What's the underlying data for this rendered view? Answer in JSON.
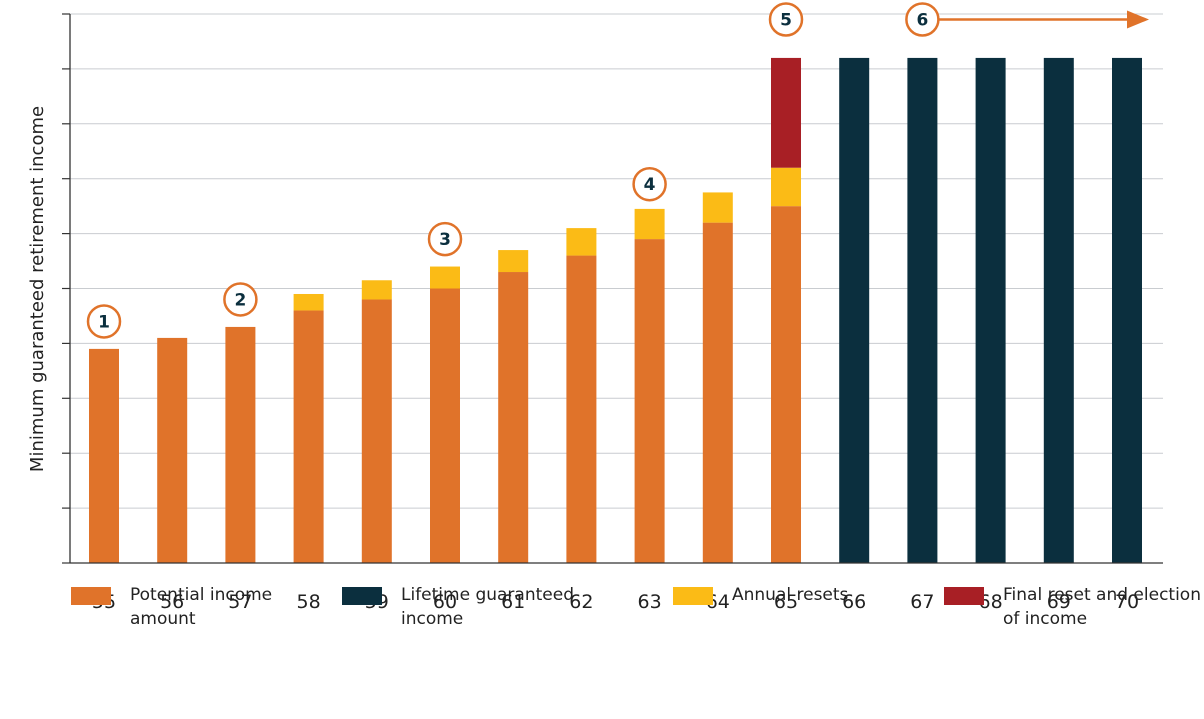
{
  "chart_data": {
    "type": "bar",
    "stacked": true,
    "ylabel": "Minimum guaranteed retirement income",
    "xlabel": "",
    "categories": [
      "55",
      "56",
      "57",
      "58",
      "59",
      "60",
      "61",
      "62",
      "63",
      "64",
      "65",
      "66",
      "67",
      "68",
      "69",
      "70"
    ],
    "ylim": [
      0,
      10
    ],
    "grid": true,
    "y_tick_labels_shown": false,
    "series": [
      {
        "name": "Potential income amount",
        "color": "#e0732a",
        "values": [
          3.9,
          4.1,
          4.3,
          4.6,
          4.8,
          5.0,
          5.3,
          5.6,
          5.9,
          6.2,
          6.5,
          0,
          0,
          0,
          0,
          0
        ]
      },
      {
        "name": "Lifetime guaranteed income",
        "color": "#0b2f3e",
        "values": [
          0,
          0,
          0,
          0,
          0,
          0,
          0,
          0,
          0,
          0,
          0,
          9.2,
          9.2,
          9.2,
          9.2,
          9.2
        ]
      },
      {
        "name": "Annual resets",
        "color": "#fbbb16",
        "values": [
          0,
          0,
          0,
          0.3,
          0.35,
          0.4,
          0.4,
          0.5,
          0.55,
          0.55,
          0.7,
          0,
          0,
          0,
          0,
          0
        ]
      },
      {
        "name": "Final reset and election of income",
        "color": "#a81f25",
        "values": [
          0,
          0,
          0,
          0,
          0,
          0,
          0,
          0,
          0,
          0,
          2.0,
          0,
          0,
          0,
          0,
          0
        ]
      }
    ],
    "annotations": [
      {
        "label": "1",
        "category": "55",
        "value": 4.4
      },
      {
        "label": "2",
        "category": "57",
        "value": 4.8
      },
      {
        "label": "3",
        "category": "60",
        "value": 5.9
      },
      {
        "label": "4",
        "category": "63",
        "value": 6.9
      },
      {
        "label": "5",
        "category": "65",
        "value": 9.9
      },
      {
        "label": "6",
        "category": "67",
        "value": 9.9,
        "arrow_to_category": "70"
      }
    ],
    "annotation_color": "#e0732a"
  },
  "legend": {
    "potential": "Potential income amount",
    "lifetime": "Lifetime guaranteed income",
    "annual": "Annual resets",
    "final": "Final reset and election of income"
  }
}
